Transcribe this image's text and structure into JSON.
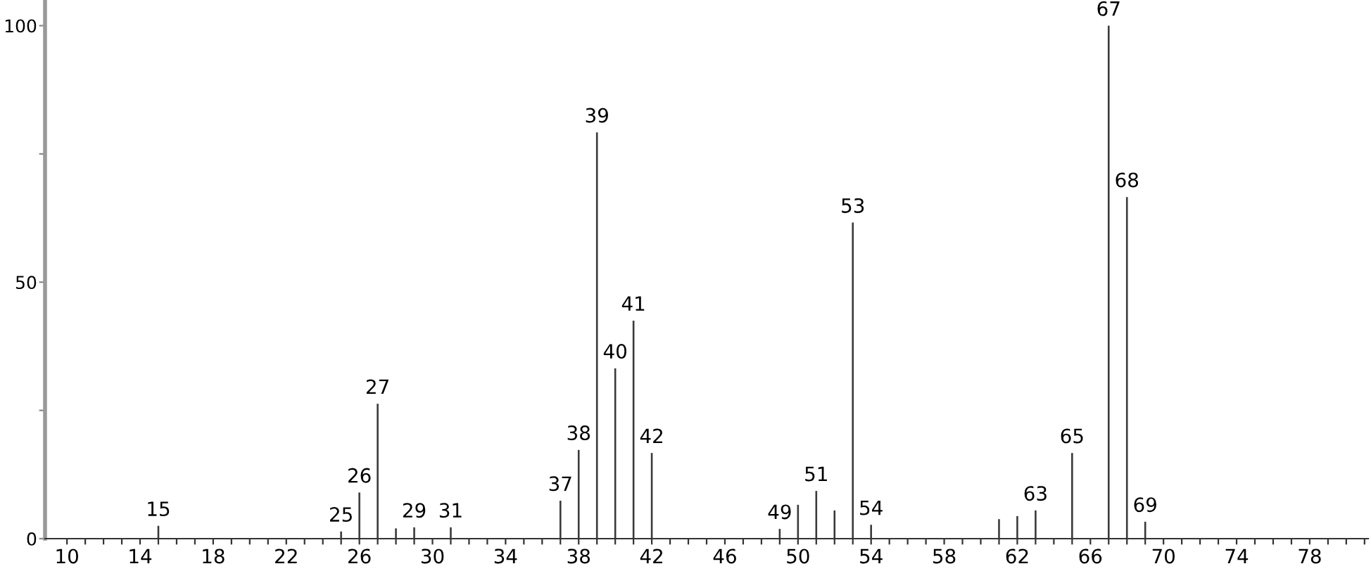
{
  "chart_data": {
    "type": "bar",
    "x": [
      15,
      25,
      26,
      27,
      28,
      29,
      31,
      37,
      38,
      39,
      40,
      41,
      42,
      49,
      50,
      51,
      52,
      53,
      54,
      61,
      62,
      63,
      65,
      67,
      68,
      69
    ],
    "values": [
      2.5,
      1.4,
      9,
      26.3,
      2,
      2.2,
      2.2,
      7.4,
      17.3,
      79.2,
      33.2,
      42.5,
      16.7,
      1.9,
      6.6,
      9.3,
      5.5,
      61.6,
      2.7,
      3.8,
      4.4,
      5.5,
      16.7,
      100,
      66.6,
      3.3
    ],
    "color": "#3a3a3a",
    "xlim": [
      8.8,
      81.2
    ],
    "xticks": [
      10,
      {
        "value": 11,
        "label": null
      },
      {
        "value": 12,
        "label": null
      },
      {
        "value": 13,
        "label": null
      },
      14,
      {
        "value": 15,
        "label": null
      },
      {
        "value": 16,
        "label": null
      },
      {
        "value": 17,
        "label": null
      },
      18,
      {
        "value": 19,
        "label": null
      },
      {
        "value": 20,
        "label": null
      },
      {
        "value": 21,
        "label": null
      },
      22,
      {
        "value": 23,
        "label": null
      },
      {
        "value": 24,
        "label": null
      },
      {
        "value": 25,
        "label": null
      },
      26,
      {
        "value": 27,
        "label": null
      },
      {
        "value": 28,
        "label": null
      },
      {
        "value": 29,
        "label": null
      },
      30,
      {
        "value": 31,
        "label": null
      },
      {
        "value": 32,
        "label": null
      },
      {
        "value": 33,
        "label": null
      },
      34,
      {
        "value": 35,
        "label": null
      },
      {
        "value": 36,
        "label": null
      },
      {
        "value": 37,
        "label": null
      },
      38,
      {
        "value": 39,
        "label": null
      },
      {
        "value": 40,
        "label": null
      },
      {
        "value": 41,
        "label": null
      },
      42,
      {
        "value": 43,
        "label": null
      },
      {
        "value": 44,
        "label": null
      },
      {
        "value": 45,
        "label": null
      },
      46,
      {
        "value": 47,
        "label": null
      },
      {
        "value": 48,
        "label": null
      },
      {
        "value": 49,
        "label": null
      },
      50,
      {
        "value": 51,
        "label": null
      },
      {
        "value": 52,
        "label": null
      },
      {
        "value": 53,
        "label": null
      },
      54,
      {
        "value": 55,
        "label": null
      },
      {
        "value": 56,
        "label": null
      },
      {
        "value": 57,
        "label": null
      },
      58,
      {
        "value": 59,
        "label": null
      },
      {
        "value": 60,
        "label": null
      },
      {
        "value": 61,
        "label": null
      },
      62,
      {
        "value": 63,
        "label": null
      },
      {
        "value": 64,
        "label": null
      },
      {
        "value": 65,
        "label": null
      },
      66,
      {
        "value": 67,
        "label": null
      },
      {
        "value": 68,
        "label": null
      },
      {
        "value": 69,
        "label": null
      },
      70,
      {
        "value": 71,
        "label": null
      },
      {
        "value": 72,
        "label": null
      },
      {
        "value": 73,
        "label": null
      },
      74,
      {
        "value": 75,
        "label": null
      },
      {
        "value": 76,
        "label": null
      },
      {
        "value": 77,
        "label": null
      },
      78,
      {
        "value": 79,
        "label": null
      },
      {
        "value": 80,
        "label": null
      },
      {
        "value": 81,
        "label": null
      }
    ],
    "ylim": [
      0,
      105
    ],
    "yticks": [
      0,
      {
        "value": 25,
        "label": null
      },
      50,
      {
        "value": 75,
        "label": null
      },
      100
    ],
    "grid": false,
    "annotations": [
      {
        "text": "15",
        "x": 15,
        "y": 2.5
      },
      {
        "text": "25",
        "x": 25,
        "y": 1.4
      },
      {
        "text": "26",
        "x": 26,
        "y": 9
      },
      {
        "text": "27",
        "x": 27,
        "y": 26.3
      },
      {
        "text": "29",
        "x": 29,
        "y": 2.2
      },
      {
        "text": "31",
        "x": 31,
        "y": 2.2
      },
      {
        "text": "37",
        "x": 37,
        "y": 7.4
      },
      {
        "text": "38",
        "x": 38,
        "y": 17.3
      },
      {
        "text": "39",
        "x": 39,
        "y": 79.2
      },
      {
        "text": "40",
        "x": 40,
        "y": 33.2
      },
      {
        "text": "41",
        "x": 41,
        "y": 42.5
      },
      {
        "text": "42",
        "x": 42,
        "y": 16.7
      },
      {
        "text": "49",
        "x": 49,
        "y": 1.9
      },
      {
        "text": "51",
        "x": 51,
        "y": 9.3
      },
      {
        "text": "53",
        "x": 53,
        "y": 61.6
      },
      {
        "text": "54",
        "x": 54,
        "y": 2.7
      },
      {
        "text": "63",
        "x": 63,
        "y": 5.5
      },
      {
        "text": "65",
        "x": 65,
        "y": 16.7
      },
      {
        "text": "67",
        "x": 67,
        "y": 100
      },
      {
        "text": "68",
        "x": 68,
        "y": 66.6
      },
      {
        "text": "69",
        "x": 69,
        "y": 3.3
      }
    ]
  }
}
